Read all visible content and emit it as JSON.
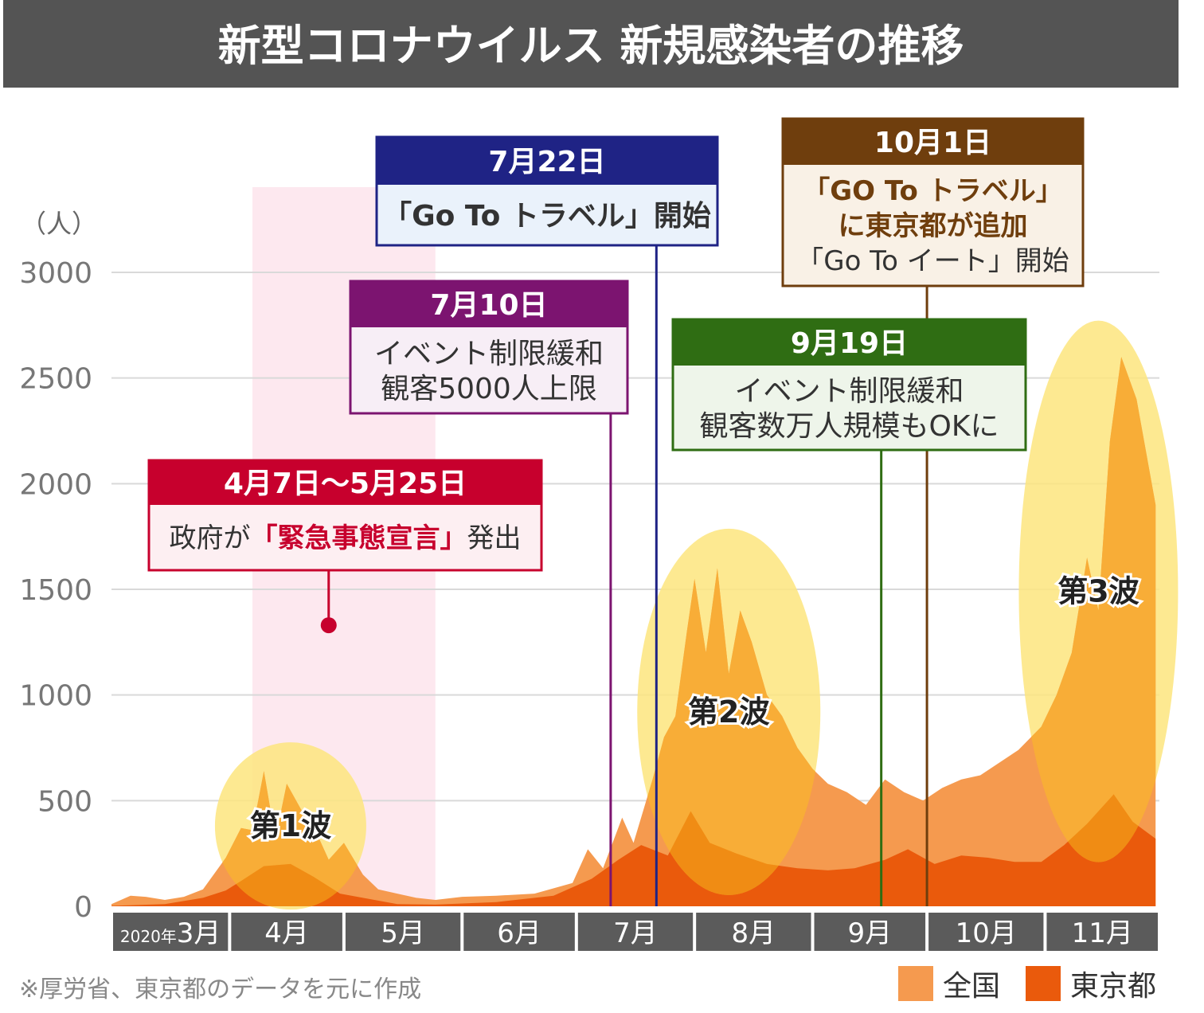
{
  "title": "新型コロナウイルス 新規感染者の推移",
  "y_unit": "（人）",
  "year_label": "2020年",
  "source_note": "※厚労省、東京都のデータを元に作成",
  "colors": {
    "header_bg": "#545454",
    "national": "#f59a4f",
    "tokyo": "#ea5a0c",
    "wave_highlight": "#fde57e",
    "wave_fill": "#f8b032",
    "emergency_band": "#fde8ef",
    "axis_bar": "#5b5b5b",
    "grid": "#d9d9d9",
    "emergency": "#c7002d",
    "event_jul10": "#7c1470",
    "event_jul22": "#1f2385",
    "event_sep19": "#2f6d13",
    "event_oct1": "#6f3e0d"
  },
  "chart_data": {
    "type": "area",
    "title": "新型コロナウイルス 新規感染者の推移",
    "ylabel": "（人）",
    "ylim": [
      0,
      3000
    ],
    "yticks": [
      0,
      500,
      1000,
      1500,
      2000,
      2500,
      3000
    ],
    "x_range": [
      "2020-03-01",
      "2020-11-30"
    ],
    "months": [
      {
        "label": "3月",
        "start": "2020-03-01",
        "prefix": "2020年"
      },
      {
        "label": "4月",
        "start": "2020-04-01"
      },
      {
        "label": "5月",
        "start": "2020-05-01"
      },
      {
        "label": "6月",
        "start": "2020-06-01"
      },
      {
        "label": "7月",
        "start": "2020-07-01"
      },
      {
        "label": "8月",
        "start": "2020-08-01"
      },
      {
        "label": "9月",
        "start": "2020-09-01"
      },
      {
        "label": "10月",
        "start": "2020-10-01"
      },
      {
        "label": "11月",
        "start": "2020-11-01"
      }
    ],
    "legend_position": "bottom-right",
    "grid": true,
    "series": [
      {
        "name": "全国",
        "color": "#f59a4f",
        "points": [
          [
            "2020-03-01",
            10
          ],
          [
            "2020-03-06",
            50
          ],
          [
            "2020-03-10",
            45
          ],
          [
            "2020-03-15",
            30
          ],
          [
            "2020-03-20",
            45
          ],
          [
            "2020-03-25",
            80
          ],
          [
            "2020-03-31",
            230
          ],
          [
            "2020-04-04",
            370
          ],
          [
            "2020-04-07",
            360
          ],
          [
            "2020-04-10",
            640
          ],
          [
            "2020-04-13",
            320
          ],
          [
            "2020-04-16",
            580
          ],
          [
            "2020-04-20",
            450
          ],
          [
            "2020-04-23",
            380
          ],
          [
            "2020-04-27",
            220
          ],
          [
            "2020-05-01",
            300
          ],
          [
            "2020-05-06",
            150
          ],
          [
            "2020-05-10",
            80
          ],
          [
            "2020-05-15",
            60
          ],
          [
            "2020-05-20",
            40
          ],
          [
            "2020-05-25",
            30
          ],
          [
            "2020-06-01",
            45
          ],
          [
            "2020-06-10",
            50
          ],
          [
            "2020-06-20",
            60
          ],
          [
            "2020-06-30",
            110
          ],
          [
            "2020-07-04",
            270
          ],
          [
            "2020-07-08",
            180
          ],
          [
            "2020-07-13",
            420
          ],
          [
            "2020-07-16",
            300
          ],
          [
            "2020-07-21",
            600
          ],
          [
            "2020-07-24",
            800
          ],
          [
            "2020-07-27",
            900
          ],
          [
            "2020-07-30",
            1300
          ],
          [
            "2020-08-01",
            1550
          ],
          [
            "2020-08-04",
            1200
          ],
          [
            "2020-08-07",
            1600
          ],
          [
            "2020-08-10",
            1100
          ],
          [
            "2020-08-13",
            1400
          ],
          [
            "2020-08-16",
            1250
          ],
          [
            "2020-08-20",
            1000
          ],
          [
            "2020-08-24",
            900
          ],
          [
            "2020-08-28",
            750
          ],
          [
            "2020-09-01",
            650
          ],
          [
            "2020-09-05",
            580
          ],
          [
            "2020-09-10",
            540
          ],
          [
            "2020-09-15",
            480
          ],
          [
            "2020-09-20",
            600
          ],
          [
            "2020-09-25",
            540
          ],
          [
            "2020-09-30",
            500
          ],
          [
            "2020-10-05",
            560
          ],
          [
            "2020-10-10",
            600
          ],
          [
            "2020-10-15",
            620
          ],
          [
            "2020-10-20",
            680
          ],
          [
            "2020-10-25",
            740
          ],
          [
            "2020-10-31",
            850
          ],
          [
            "2020-11-04",
            1000
          ],
          [
            "2020-11-08",
            1200
          ],
          [
            "2020-11-12",
            1650
          ],
          [
            "2020-11-15",
            1400
          ],
          [
            "2020-11-18",
            2200
          ],
          [
            "2020-11-21",
            2600
          ],
          [
            "2020-11-25",
            2400
          ],
          [
            "2020-11-30",
            1900
          ]
        ]
      },
      {
        "name": "東京都",
        "color": "#ea5a0c",
        "points": [
          [
            "2020-03-01",
            2
          ],
          [
            "2020-03-15",
            10
          ],
          [
            "2020-03-25",
            40
          ],
          [
            "2020-03-31",
            75
          ],
          [
            "2020-04-04",
            120
          ],
          [
            "2020-04-10",
            190
          ],
          [
            "2020-04-17",
            200
          ],
          [
            "2020-04-23",
            140
          ],
          [
            "2020-04-30",
            60
          ],
          [
            "2020-05-06",
            40
          ],
          [
            "2020-05-15",
            10
          ],
          [
            "2020-05-25",
            8
          ],
          [
            "2020-06-10",
            20
          ],
          [
            "2020-06-25",
            50
          ],
          [
            "2020-07-05",
            130
          ],
          [
            "2020-07-12",
            220
          ],
          [
            "2020-07-18",
            290
          ],
          [
            "2020-07-25",
            240
          ],
          [
            "2020-07-31",
            450
          ],
          [
            "2020-08-05",
            300
          ],
          [
            "2020-08-12",
            250
          ],
          [
            "2020-08-20",
            200
          ],
          [
            "2020-08-28",
            180
          ],
          [
            "2020-09-05",
            170
          ],
          [
            "2020-09-12",
            180
          ],
          [
            "2020-09-20",
            220
          ],
          [
            "2020-09-26",
            270
          ],
          [
            "2020-10-03",
            200
          ],
          [
            "2020-10-10",
            240
          ],
          [
            "2020-10-17",
            230
          ],
          [
            "2020-10-24",
            210
          ],
          [
            "2020-10-31",
            210
          ],
          [
            "2020-11-06",
            290
          ],
          [
            "2020-11-12",
            390
          ],
          [
            "2020-11-19",
            530
          ],
          [
            "2020-11-24",
            400
          ],
          [
            "2020-11-30",
            320
          ]
        ]
      }
    ],
    "emergency_period": {
      "from": "2020-04-07",
      "to": "2020-05-25"
    },
    "events": [
      {
        "id": "emergency",
        "date_label": "4月7日〜5月25日",
        "lines": [
          "政府が「緊急事態宣言」発出"
        ],
        "anchor": "2020-04-27",
        "anchor_value": 1330,
        "color": "#c7002d"
      },
      {
        "id": "jul10",
        "date_label": "7月10日",
        "lines": [
          "イベント制限緩和",
          "観客5000人上限"
        ],
        "date": "2020-07-10",
        "color": "#7c1470"
      },
      {
        "id": "jul22",
        "date_label": "7月22日",
        "lines": [
          "「Go To トラベル」開始"
        ],
        "date": "2020-07-22",
        "color": "#1f2385"
      },
      {
        "id": "sep19",
        "date_label": "9月19日",
        "lines": [
          "イベント制限緩和",
          "観客数万人規模もOKに"
        ],
        "date": "2020-09-19",
        "color": "#2f6d13"
      },
      {
        "id": "oct1",
        "date_label": "10月1日",
        "lines": [
          "「GO To トラベル」",
          "に東京都が追加",
          "「Go To イート」開始"
        ],
        "date": "2020-10-01",
        "color": "#6f3e0d"
      }
    ],
    "waves": [
      {
        "label": "第1波",
        "center": "2020-04-17",
        "value": 380
      },
      {
        "label": "第2波",
        "center": "2020-08-10",
        "value": 920
      },
      {
        "label": "第3波",
        "center": "2020-11-15",
        "value": 1490
      }
    ]
  },
  "legend": [
    {
      "label": "全国",
      "color": "#f59a4f"
    },
    {
      "label": "東京都",
      "color": "#ea5a0c"
    }
  ]
}
